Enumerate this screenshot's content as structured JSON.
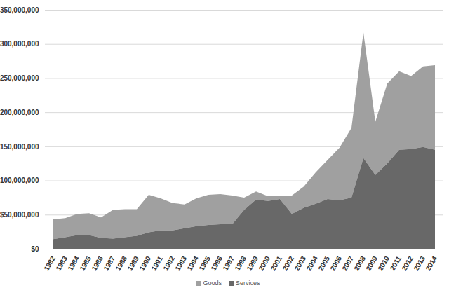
{
  "chart_data": {
    "type": "area",
    "stacked": true,
    "grid": true,
    "categories": [
      "1982",
      "1983",
      "1984",
      "1985",
      "1986",
      "1987",
      "1988",
      "1989",
      "1990",
      "1991",
      "1992",
      "1993",
      "1994",
      "1995",
      "1996",
      "1997",
      "1998",
      "1999",
      "2000",
      "2001",
      "2002",
      "2003",
      "2004",
      "2005",
      "2006",
      "2007",
      "2008",
      "2009",
      "2010",
      "2011",
      "2012",
      "2013",
      "2014"
    ],
    "series": [
      {
        "name": "Goods",
        "color": "#a0a0a0",
        "values": [
          29000000,
          28000000,
          31000000,
          32000000,
          30000000,
          42000000,
          41000000,
          39000000,
          55000000,
          47000000,
          40000000,
          35000000,
          41000000,
          44000000,
          44000000,
          42000000,
          18000000,
          12000000,
          7000000,
          5000000,
          27000000,
          31000000,
          46000000,
          57000000,
          77000000,
          102000000,
          184000000,
          78000000,
          117000000,
          115000000,
          107000000,
          118000000,
          124000000
        ]
      },
      {
        "name": "Services",
        "color": "#686868",
        "values": [
          14000000,
          17000000,
          20000000,
          20000000,
          16000000,
          15000000,
          17000000,
          19000000,
          24000000,
          27000000,
          27000000,
          30000000,
          33000000,
          35000000,
          36000000,
          36000000,
          57000000,
          72000000,
          70000000,
          73000000,
          51000000,
          60000000,
          66000000,
          73000000,
          71000000,
          75000000,
          133000000,
          108000000,
          125000000,
          145000000,
          146000000,
          149000000,
          145000000
        ]
      }
    ],
    "ylim": [
      0,
      350000000
    ],
    "yticks": [
      {
        "value": 0,
        "label": "$0"
      },
      {
        "value": 50000000,
        "label": "$50,000,000"
      },
      {
        "value": 100000000,
        "label": "$100,000,000"
      },
      {
        "value": 150000000,
        "label": "$150,000,000"
      },
      {
        "value": 200000000,
        "label": "$200,000,000"
      },
      {
        "value": 250000000,
        "label": "$250,000,000"
      },
      {
        "value": 300000000,
        "label": "$300,000,000"
      },
      {
        "value": 350000000,
        "label": "$350,000,000"
      }
    ],
    "legend": "bottom"
  }
}
